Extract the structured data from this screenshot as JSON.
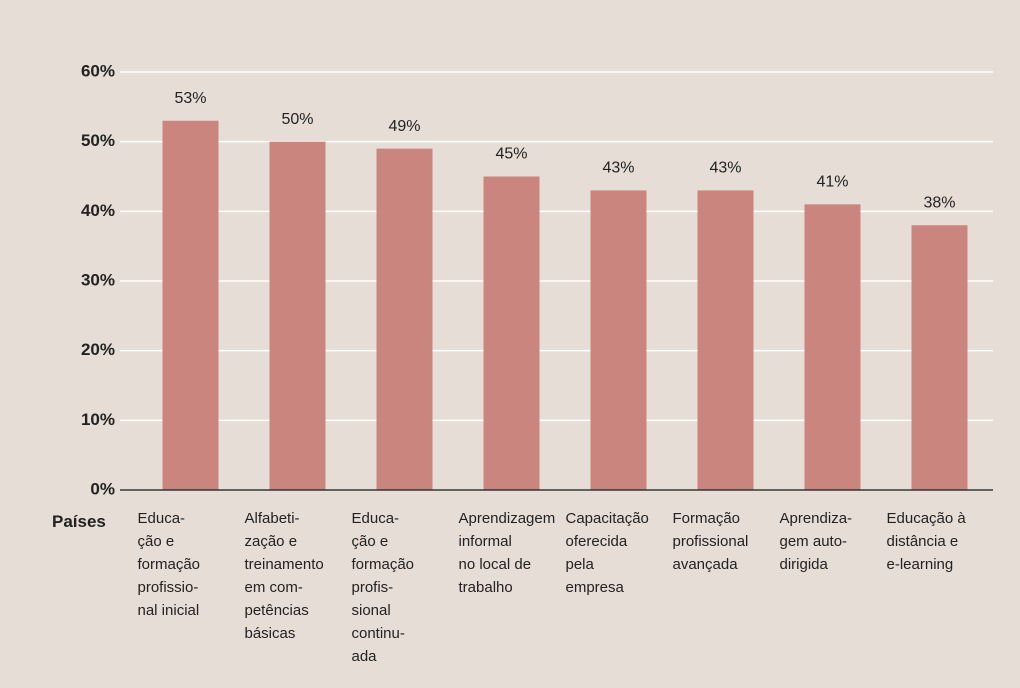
{
  "chart_data": {
    "type": "bar",
    "x_label": "Países",
    "categories": [
      "Educa-\nção e\nformação\nprofissio-\nnal inicial",
      "Alfabeti-\nzação e\ntreinamento\nem com-\npetências\nbásicas",
      "Educa-\nção e\nformação\nprofis-\nsional\ncontinu-\nada",
      "Aprendizagem\ninformal\nno local de\ntrabalho",
      "Capacitação\noferecida\npela\nempresa",
      "Formação\nprofissional\navançada",
      "Aprendiza-\ngem auto-\ndirigida",
      "Educação à\ndistância e\ne-learning"
    ],
    "values": [
      53,
      50,
      49,
      45,
      43,
      43,
      41,
      38
    ],
    "value_labels": [
      "53%",
      "50%",
      "49%",
      "45%",
      "43%",
      "43%",
      "41%",
      "38%"
    ],
    "color": "#c9857e",
    "ylim": [
      0,
      60
    ],
    "yticks": [
      {
        "value": 0,
        "label": "0%"
      },
      {
        "value": 10,
        "label": "10%"
      },
      {
        "value": 20,
        "label": "20%"
      },
      {
        "value": 30,
        "label": "30%"
      },
      {
        "value": 40,
        "label": "40%"
      },
      {
        "value": 50,
        "label": "50%"
      },
      {
        "value": 60,
        "label": "60%"
      }
    ],
    "grid": true
  }
}
